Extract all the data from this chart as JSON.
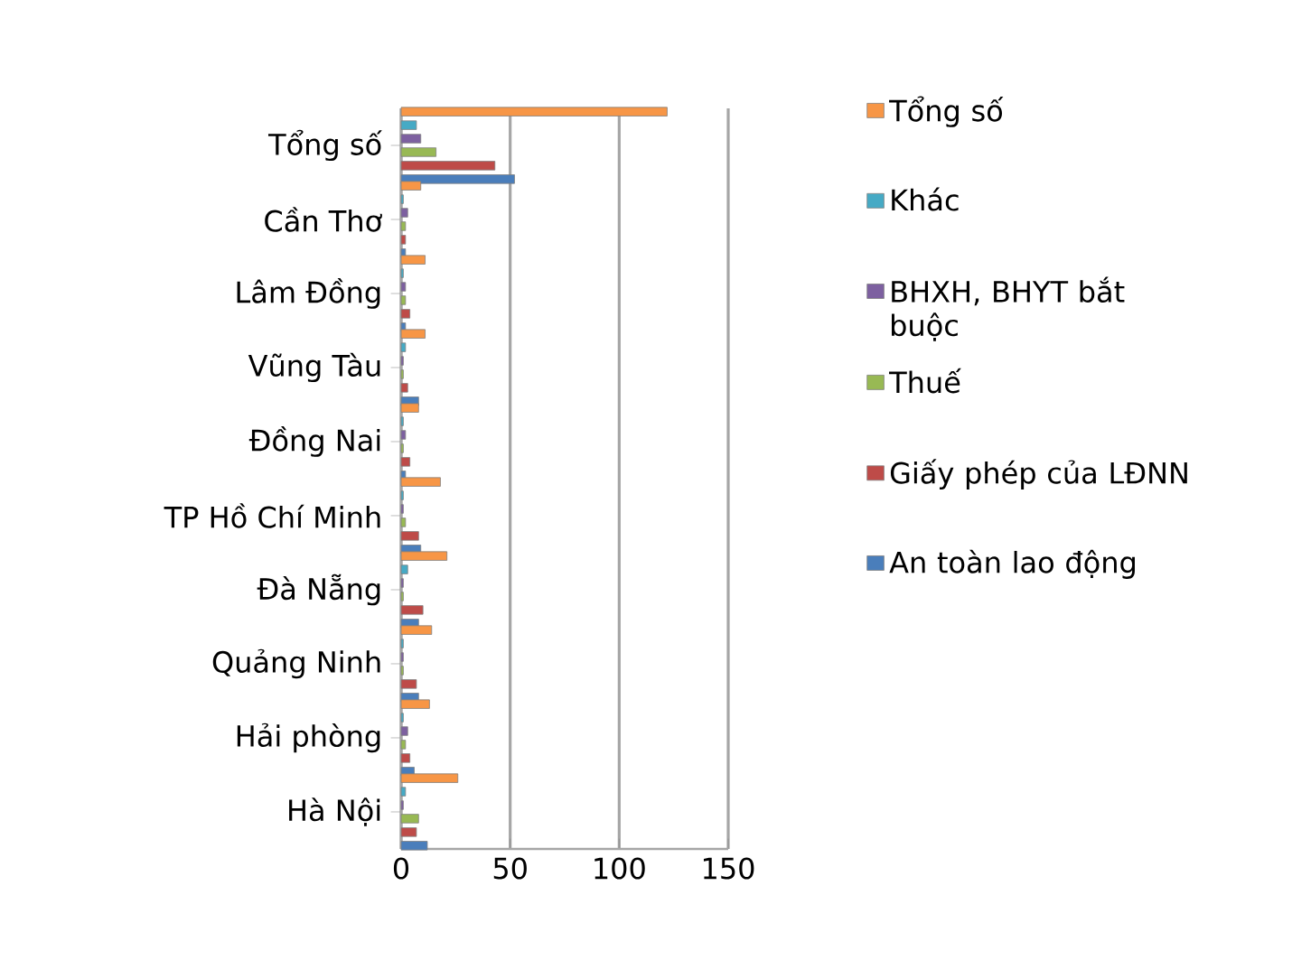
{
  "chart_data": {
    "type": "bar",
    "orientation": "horizontal",
    "categories": [
      "Tổng số",
      "Cần Thơ",
      "Lâm Đồng",
      "Vũng Tàu",
      "Đồng Nai",
      "TP Hồ Chí Minh",
      "Đà Nẵng",
      "Quảng Ninh",
      "Hải phòng",
      "Hà Nội"
    ],
    "series": [
      {
        "name": "An toàn lao động",
        "color": "#4a7ebb",
        "values": [
          52,
          2,
          2,
          8,
          2,
          9,
          8,
          8,
          6,
          12
        ]
      },
      {
        "name": "Giấy phép của LĐNN",
        "color": "#be4b48",
        "values": [
          43,
          2,
          4,
          3,
          4,
          8,
          10,
          7,
          4,
          7
        ]
      },
      {
        "name": "Thuế",
        "color": "#98b954",
        "values": [
          16,
          2,
          2,
          1,
          1,
          2,
          1,
          1,
          2,
          8
        ]
      },
      {
        "name": "BHXH, BHYT bắt buộc",
        "color": "#7d60a0",
        "values": [
          9,
          3,
          2,
          1,
          2,
          1,
          1,
          1,
          3,
          1
        ]
      },
      {
        "name": "Khác",
        "color": "#46aac5",
        "values": [
          7,
          1,
          1,
          2,
          1,
          1,
          3,
          1,
          1,
          2
        ]
      },
      {
        "name": "Tổng số",
        "color": "#f79646",
        "values": [
          122,
          9,
          11,
          11,
          8,
          18,
          21,
          14,
          13,
          26
        ]
      }
    ],
    "xlim": [
      0,
      150
    ],
    "xticks": [
      0,
      50,
      100,
      150
    ],
    "grid": "x",
    "legend": "right"
  }
}
